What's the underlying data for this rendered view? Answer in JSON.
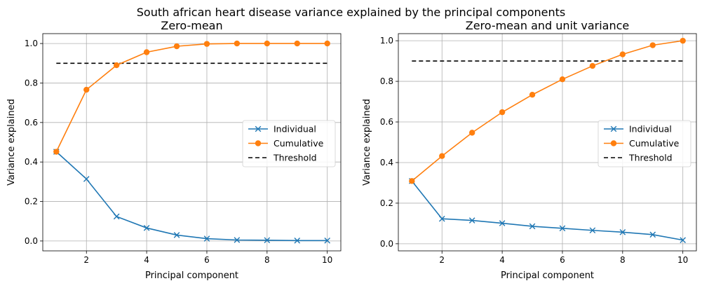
{
  "suptitle": "South african heart disease variance explained by the principal components",
  "colors": {
    "individual": "#1f77b4",
    "cumulative": "#ff7f0e",
    "threshold": "#000000",
    "grid": "#b0b0b0"
  },
  "chart_data": [
    {
      "type": "line",
      "title": "Zero-mean",
      "xlabel": "Principal component",
      "ylabel": "Variance explained",
      "xlim": [
        0.55,
        10.45
      ],
      "ylim": [
        -0.05,
        1.05
      ],
      "xticks": [
        2,
        4,
        6,
        8,
        10
      ],
      "xtick_labels": [
        "2",
        "4",
        "6",
        "8",
        "10"
      ],
      "yticks": [
        0.0,
        0.2,
        0.4,
        0.6,
        0.8,
        1.0
      ],
      "ytick_labels": [
        "0.0",
        "0.2",
        "0.4",
        "0.6",
        "0.8",
        "1.0"
      ],
      "grid": true,
      "legend": "center-right",
      "x": [
        1,
        2,
        3,
        4,
        5,
        6,
        7,
        8,
        9,
        10
      ],
      "series": [
        {
          "name": "Individual",
          "marker": "x",
          "values": [
            0.452,
            0.314,
            0.124,
            0.066,
            0.03,
            0.012,
            0.005,
            0.004,
            0.002,
            0.002
          ]
        },
        {
          "name": "Cumulative",
          "marker": "o",
          "values": [
            0.452,
            0.766,
            0.89,
            0.956,
            0.986,
            0.998,
            1.0,
            1.0,
            1.0,
            1.0
          ]
        },
        {
          "name": "Threshold",
          "style": "dashed",
          "x": [
            1,
            10
          ],
          "values": [
            0.9,
            0.9
          ]
        }
      ]
    },
    {
      "type": "line",
      "title": "Zero-mean and unit variance",
      "xlabel": "Principal component",
      "ylabel": "Variance explained",
      "xlim": [
        0.55,
        10.45
      ],
      "ylim": [
        -0.035,
        1.035
      ],
      "xticks": [
        2,
        4,
        6,
        8,
        10
      ],
      "xtick_labels": [
        "2",
        "4",
        "6",
        "8",
        "10"
      ],
      "yticks": [
        0.0,
        0.2,
        0.4,
        0.6,
        0.8,
        1.0
      ],
      "ytick_labels": [
        "0.0",
        "0.2",
        "0.4",
        "0.6",
        "0.8",
        "1.0"
      ],
      "grid": true,
      "legend": "center-right",
      "x": [
        1,
        2,
        3,
        4,
        5,
        6,
        7,
        8,
        9,
        10
      ],
      "series": [
        {
          "name": "Individual",
          "marker": "x",
          "values": [
            0.309,
            0.123,
            0.115,
            0.101,
            0.086,
            0.076,
            0.066,
            0.057,
            0.045,
            0.018
          ]
        },
        {
          "name": "Cumulative",
          "marker": "o",
          "values": [
            0.309,
            0.432,
            0.547,
            0.648,
            0.734,
            0.81,
            0.876,
            0.933,
            0.978,
            1.0
          ]
        },
        {
          "name": "Threshold",
          "style": "dashed",
          "x": [
            1,
            10
          ],
          "values": [
            0.9,
            0.9
          ]
        }
      ]
    }
  ]
}
